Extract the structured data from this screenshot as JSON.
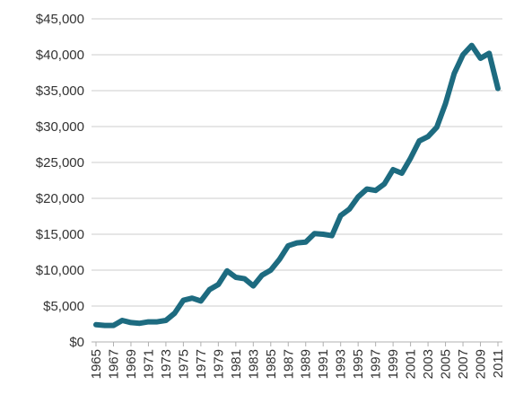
{
  "chart_data": {
    "type": "line",
    "title": "",
    "xlabel": "",
    "ylabel": "",
    "ylim": [
      0,
      45000
    ],
    "xlim": [
      1965,
      2011
    ],
    "grid": true,
    "legend": "none",
    "line_color": "#1d6b80",
    "y_ticks": [
      {
        "value": 0,
        "label": "$0"
      },
      {
        "value": 5000,
        "label": "$5,000"
      },
      {
        "value": 10000,
        "label": "$10,000"
      },
      {
        "value": 15000,
        "label": "$15,000"
      },
      {
        "value": 20000,
        "label": "$20,000"
      },
      {
        "value": 25000,
        "label": "$25,000"
      },
      {
        "value": 30000,
        "label": "$30,000"
      },
      {
        "value": 35000,
        "label": "$35,000"
      },
      {
        "value": 40000,
        "label": "$40,000"
      },
      {
        "value": 45000,
        "label": "$45,000"
      }
    ],
    "x_ticks": [
      "1965",
      "1967",
      "1969",
      "1971",
      "1973",
      "1975",
      "1977",
      "1979",
      "1981",
      "1983",
      "1985",
      "1987",
      "1989",
      "1991",
      "1993",
      "1995",
      "1997",
      "1999",
      "2001",
      "2003",
      "2005",
      "2007",
      "2009",
      "2011"
    ],
    "series": [
      {
        "x": [
          1965,
          1966,
          1967,
          1968,
          1969,
          1970,
          1971,
          1972,
          1973,
          1974,
          1975,
          1976,
          1977,
          1978,
          1979,
          1980,
          1981,
          1982,
          1983,
          1984,
          1985,
          1986,
          1987,
          1988,
          1989,
          1990,
          1991,
          1992,
          1993,
          1994,
          1995,
          1996,
          1997,
          1998,
          1999,
          2000,
          2001,
          2002,
          2003,
          2004,
          2005,
          2006,
          2007,
          2008,
          2009,
          2010,
          2011
        ],
        "values": [
          2400,
          2300,
          2300,
          3000,
          2700,
          2600,
          2800,
          2800,
          3000,
          4000,
          5800,
          6100,
          5700,
          7300,
          8000,
          9900,
          9000,
          8800,
          7800,
          9300,
          10000,
          11500,
          13400,
          13800,
          13900,
          15100,
          15000,
          14800,
          17600,
          18500,
          20200,
          21300,
          21100,
          22000,
          24000,
          23500,
          25600,
          28000,
          28600,
          29900,
          33200,
          37400,
          40000,
          41300,
          39500,
          40200,
          35300
        ]
      }
    ]
  }
}
